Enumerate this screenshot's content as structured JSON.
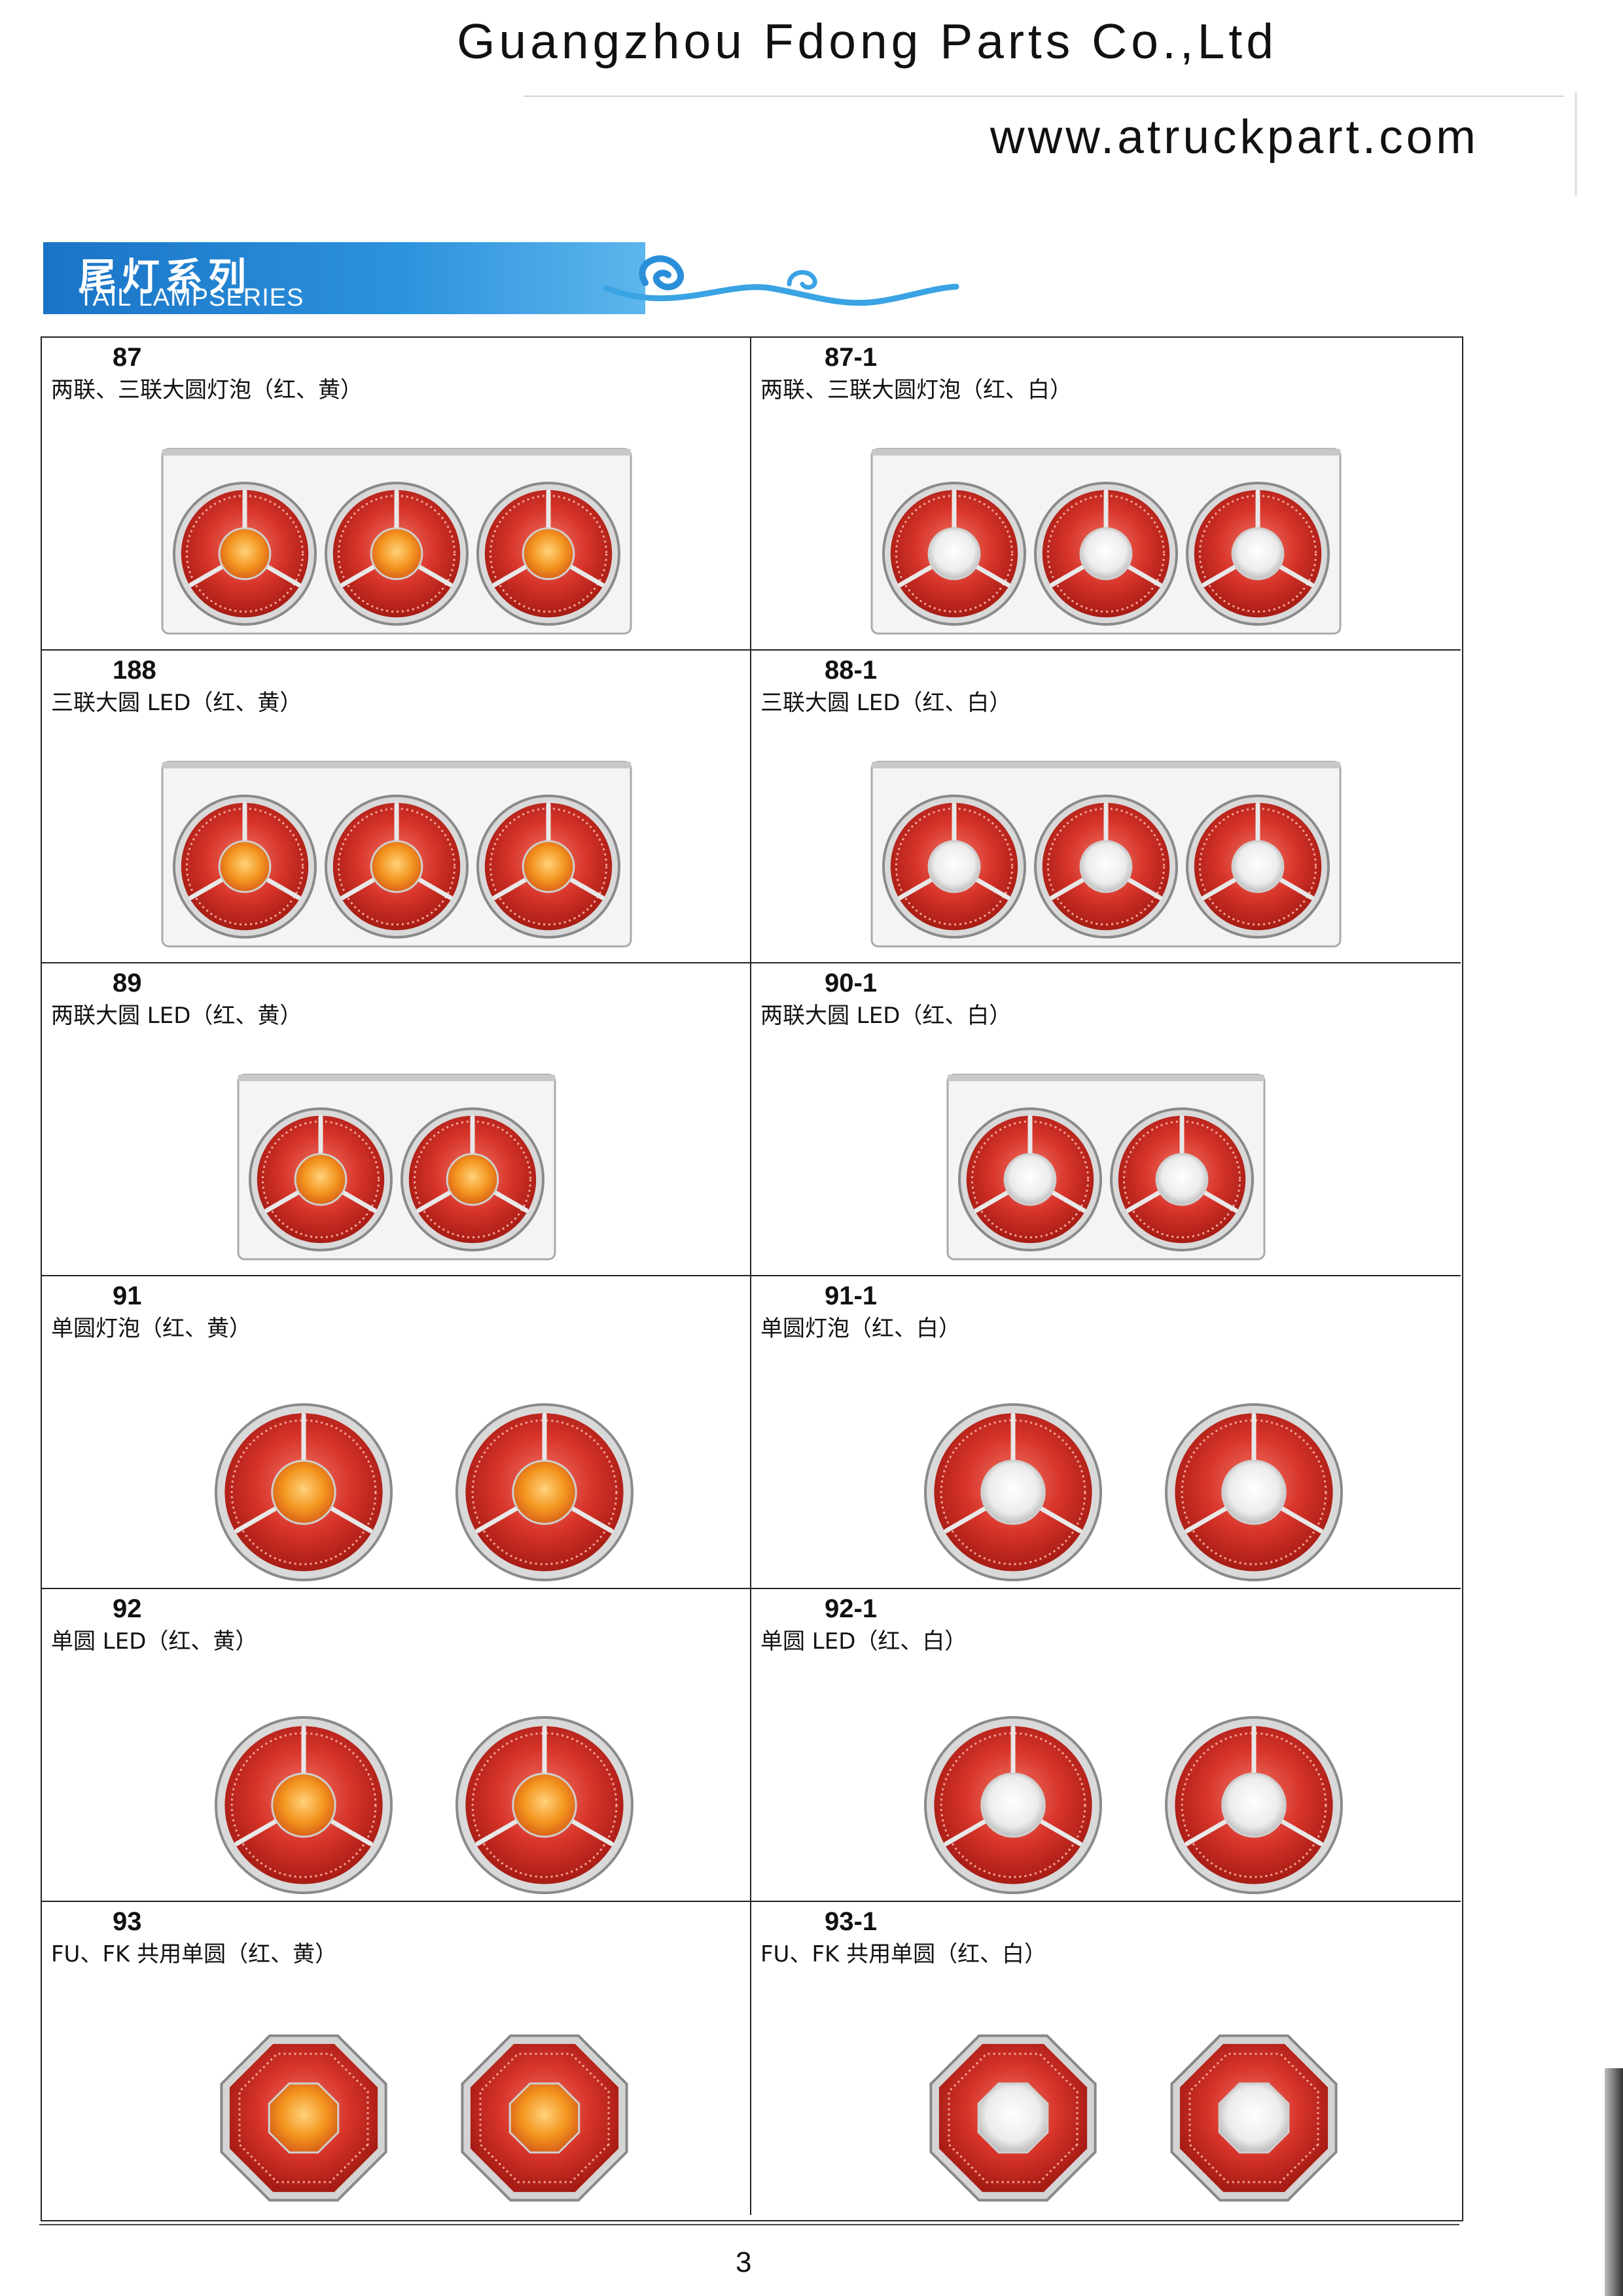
{
  "header": {
    "company": "Guangzhou Fdong Parts Co.,Ltd",
    "website": "www.atruckpart.com"
  },
  "section": {
    "title_cn": "尾灯系列",
    "title_en": "TAIL LAMPSERIES"
  },
  "colors": {
    "banner_blue": "#1f80d0",
    "lens_red": "#d8342a",
    "lens_amber": "#f3941e",
    "lens_clear": "#ececec",
    "chrome": "#b9b9b9"
  },
  "products": [
    {
      "code": "87",
      "desc": "两联、三联大圆灯泡（红、黄）",
      "shape": "round",
      "count": 3,
      "center": "amber",
      "housing": true
    },
    {
      "code": "87-1",
      "desc": "两联、三联大圆灯泡（红、白）",
      "shape": "round",
      "count": 3,
      "center": "clear",
      "housing": true
    },
    {
      "code": "188",
      "desc": "三联大圆 LED（红、黄）",
      "shape": "round",
      "count": 3,
      "center": "amber",
      "housing": true
    },
    {
      "code": "88-1",
      "desc": "三联大圆 LED（红、白）",
      "shape": "round",
      "count": 3,
      "center": "clear",
      "housing": true
    },
    {
      "code": "89",
      "desc": "两联大圆 LED（红、黄）",
      "shape": "round",
      "count": 2,
      "center": "amber",
      "housing": true
    },
    {
      "code": "90-1",
      "desc": "两联大圆 LED（红、白）",
      "shape": "round",
      "count": 2,
      "center": "clear",
      "housing": true
    },
    {
      "code": "91",
      "desc": "单圆灯泡（红、黄）",
      "shape": "round",
      "count": 2,
      "center": "amber",
      "housing": false
    },
    {
      "code": "91-1",
      "desc": "单圆灯泡（红、白）",
      "shape": "round",
      "count": 2,
      "center": "clear",
      "housing": false
    },
    {
      "code": "92",
      "desc": "单圆 LED（红、黄）",
      "shape": "round",
      "count": 2,
      "center": "amber",
      "housing": false
    },
    {
      "code": "92-1",
      "desc": "单圆 LED（红、白）",
      "shape": "round",
      "count": 2,
      "center": "clear",
      "housing": false
    },
    {
      "code": "93",
      "desc": "FU、FK 共用单圆（红、黄）",
      "shape": "octagon",
      "count": 2,
      "center": "amber",
      "housing": false
    },
    {
      "code": "93-1",
      "desc": "FU、FK 共用单圆（红、白）",
      "shape": "octagon",
      "count": 2,
      "center": "clear",
      "housing": false
    }
  ],
  "footer": {
    "page_number": "3"
  }
}
